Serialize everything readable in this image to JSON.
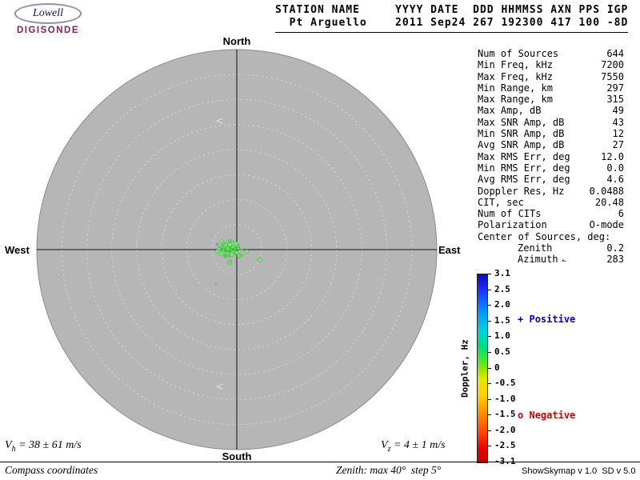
{
  "logo": {
    "name": "Lowell",
    "product": "DIGISONDE"
  },
  "header": {
    "line1": "STATION NAME     YYYY DATE  DDD HHMMSS AXN PPS IGP",
    "line2": "  Pt Arguello    2011 Sep24 267 192300 417 100 -8D"
  },
  "compass": {
    "north": "North",
    "south": "South",
    "west": "West",
    "east": "East"
  },
  "params": {
    "rows": [
      {
        "label": "Num of Sources",
        "value": "644"
      },
      {
        "label": "Min Freq, kHz",
        "value": "7200"
      },
      {
        "label": "Max Freq, kHz",
        "value": "7550"
      },
      {
        "label": "Min Range, km",
        "value": "297"
      },
      {
        "label": "Max Range, km",
        "value": "315"
      },
      {
        "label": "Max Amp, dB",
        "value": "49"
      },
      {
        "label": "Max SNR Amp, dB",
        "value": "43"
      },
      {
        "label": "Min SNR Amp, dB",
        "value": "12"
      },
      {
        "label": "Avg SNR Amp, dB",
        "value": "27"
      },
      {
        "label": "Max RMS Err, deg",
        "value": "12.0"
      },
      {
        "label": "Min RMS Err, deg",
        "value": "0.0"
      },
      {
        "label": "Avg RMS Err, deg",
        "value": "4.6"
      },
      {
        "label": "Doppler Res, Hz",
        "value": "0.0488"
      },
      {
        "label": "CIT, sec",
        "value": "20.48"
      },
      {
        "label": "Num of CITs",
        "value": "6"
      },
      {
        "label": "Polarization",
        "value": "O-mode"
      },
      {
        "label": "Center of Sources, deg:",
        "value": ""
      },
      {
        "label": "Zenith",
        "value": "0.2",
        "indent": true
      },
      {
        "label": "Azimuth",
        "value": "283",
        "indent": true,
        "arrow": true
      }
    ]
  },
  "colorbar": {
    "title": "Doppler, Hz",
    "ticks": [
      "3.1",
      "2.5",
      "2.0",
      "1.5",
      "1.0",
      "0.5",
      "0",
      "-0.5",
      "-1.0",
      "-1.5",
      "-2.0",
      "-2.5",
      "-3.1"
    ]
  },
  "legend": {
    "positive_symbol": "+",
    "positive_label": "Positive",
    "negative_symbol": "o",
    "negative_label": "Negative",
    "positive_color": "#0000cd",
    "negative_color": "#cd0000"
  },
  "footer": {
    "vh_prefix": "V",
    "vh_sub": "h",
    "vh_rest": " = 38 ± 61 m/s",
    "vz_prefix": "V",
    "vz_sub": "z",
    "vz_rest": " = 4 ± 1 m/s",
    "coords_note": "Compass coordinates",
    "zenith_note": "Zenith: max 40°  step 5°",
    "credit": "ShowSkymap v 1.0  SD v 5.0"
  },
  "chart_data": {
    "type": "scatter",
    "projection": "polar_skymap_compass",
    "station": "Pt Arguello",
    "timestamp": "2011 Sep24 267 192300",
    "zenith_max_deg": 40,
    "zenith_step_deg": 5,
    "num_sources": 644,
    "center_of_sources": {
      "zenith_deg": 0.2,
      "azimuth_deg": 283
    },
    "velocities": {
      "vh_ms": "38 ± 61",
      "vz_ms": "4 ± 1"
    },
    "colorbar": {
      "label": "Doppler, Hz",
      "min": -3.1,
      "max": 3.1
    },
    "point_format": [
      "zenith_deg",
      "azimuth_deg",
      "doppler_hz"
    ],
    "points": [
      [
        0.5,
        280,
        0.62
      ],
      [
        1.0,
        300,
        0.55
      ],
      [
        1.2,
        250,
        0.72
      ],
      [
        0.8,
        200,
        0.5
      ],
      [
        1.5,
        270,
        0.8
      ],
      [
        2.0,
        285,
        0.6
      ],
      [
        2.2,
        310,
        0.45
      ],
      [
        1.8,
        230,
        0.7
      ],
      [
        2.5,
        260,
        0.52
      ],
      [
        3.0,
        275,
        0.88
      ],
      [
        2.8,
        295,
        0.62
      ],
      [
        3.2,
        255,
        0.5
      ],
      [
        1.0,
        90,
        0.58
      ],
      [
        2.0,
        100,
        0.48
      ],
      [
        5.0,
        114,
        0.52
      ],
      [
        1.5,
        140,
        0.6
      ],
      [
        0.7,
        20,
        0.68
      ],
      [
        1.2,
        350,
        0.52
      ],
      [
        2.0,
        330,
        0.6
      ],
      [
        2.6,
        240,
        0.78
      ],
      [
        3.8,
        265,
        0.5
      ],
      [
        4.0,
        285,
        0.7
      ],
      [
        3.4,
        300,
        0.45
      ],
      [
        2.9,
        210,
        0.6
      ],
      [
        8.0,
        211,
        0.5
      ],
      [
        0.3,
        310,
        0.8
      ],
      [
        1.6,
        290,
        0.95
      ],
      [
        2.1,
        275,
        0.88
      ],
      [
        1.9,
        265,
        0.6
      ],
      [
        2.4,
        288,
        0.52
      ],
      [
        1.1,
        270,
        0.7
      ],
      [
        0.9,
        240,
        0.62
      ],
      [
        1.4,
        225,
        0.5
      ],
      [
        2.7,
        270,
        0.6
      ],
      [
        3.1,
        280,
        0.7
      ],
      [
        1.7,
        305,
        0.52
      ],
      [
        2.3,
        320,
        0.6
      ],
      [
        0.6,
        180,
        0.5
      ],
      [
        1.3,
        160,
        0.62
      ],
      [
        0.4,
        60,
        0.58
      ],
      [
        2.2,
        265,
        0.85
      ],
      [
        1.8,
        278,
        0.65
      ],
      [
        2.6,
        283,
        0.55
      ],
      [
        3.5,
        272,
        0.6
      ]
    ]
  }
}
